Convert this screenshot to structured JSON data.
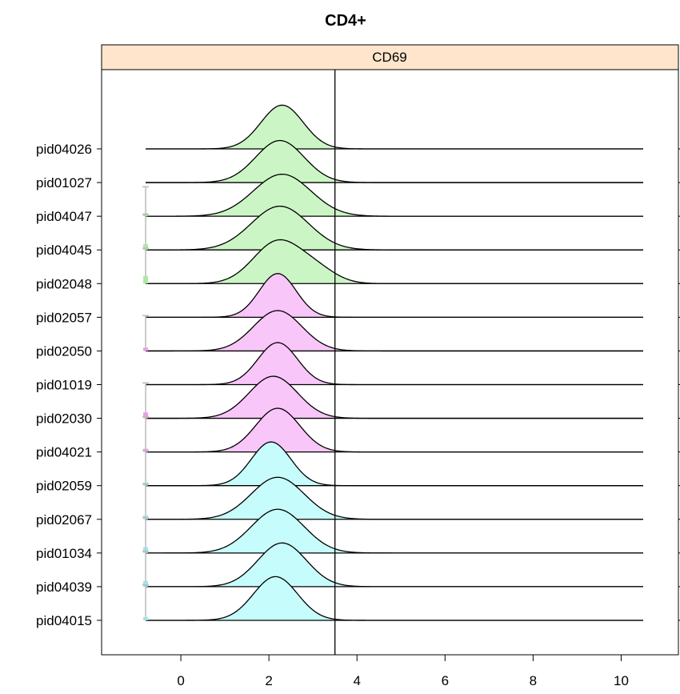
{
  "chart_data": {
    "type": "area",
    "title": "CD4+",
    "panel_label": "CD69",
    "xlim": [
      -1.8,
      11.3
    ],
    "x_ticks": [
      0,
      2,
      4,
      6,
      8,
      10
    ],
    "threshold_x": 3.5,
    "range_x": [
      -0.8,
      10.5
    ],
    "grid": false,
    "colors": {
      "green": "#ccf5c5",
      "pink": "#f9c6f9",
      "cyan": "#c7fcfc",
      "strip": "#ffe5cc",
      "whisker": "#bbbbbb",
      "box_green": "#aee8a3",
      "box_pink": "#ef9be9",
      "box_cyan": "#9fe3e8"
    },
    "series": [
      {
        "name": "pid04026",
        "group": "green",
        "peak": 2.3,
        "sd": 0.48,
        "height": 1.3,
        "box": null
      },
      {
        "name": "pid01027",
        "group": "green",
        "peak": 2.25,
        "sd": 0.55,
        "height": 1.25,
        "box": null
      },
      {
        "name": "pid04047",
        "group": "green",
        "peak": 2.3,
        "sd": 0.65,
        "height": 1.25,
        "box": [
          0.25,
          0.02
        ]
      },
      {
        "name": "pid04045",
        "group": "green",
        "peak": 2.25,
        "sd": 0.65,
        "height": 1.3,
        "box": [
          0.3,
          0.06
        ]
      },
      {
        "name": "pid02048",
        "group": "green",
        "peak": 2.2,
        "sd": 0.55,
        "height": 1.25,
        "box": [
          0.3,
          0.08
        ],
        "shoulder": [
          3.1,
          0.28,
          0.45
        ]
      },
      {
        "name": "pid02057",
        "group": "pink",
        "peak": 2.2,
        "sd": 0.42,
        "height": 1.3,
        "box": null
      },
      {
        "name": "pid02050",
        "group": "pink",
        "peak": 2.2,
        "sd": 0.55,
        "height": 1.2,
        "box": [
          0.3,
          0.02
        ]
      },
      {
        "name": "pid01019",
        "group": "pink",
        "peak": 2.2,
        "sd": 0.45,
        "height": 1.25,
        "box": null
      },
      {
        "name": "pid02030",
        "group": "pink",
        "peak": 2.1,
        "sd": 0.55,
        "height": 1.25,
        "box": [
          0.3,
          0.06
        ]
      },
      {
        "name": "pid04021",
        "group": "pink",
        "peak": 2.2,
        "sd": 0.5,
        "height": 1.3,
        "box": [
          0.3,
          0.02
        ]
      },
      {
        "name": "pid02059",
        "group": "cyan",
        "peak": 2.05,
        "sd": 0.45,
        "height": 1.3,
        "box": [
          0.3,
          0.02
        ]
      },
      {
        "name": "pid02067",
        "group": "cyan",
        "peak": 2.2,
        "sd": 0.6,
        "height": 1.25,
        "box": [
          0.3,
          0.04
        ]
      },
      {
        "name": "pid01034",
        "group": "cyan",
        "peak": 2.2,
        "sd": 0.6,
        "height": 1.3,
        "box": [
          0.3,
          0.06
        ]
      },
      {
        "name": "pid04039",
        "group": "cyan",
        "peak": 2.3,
        "sd": 0.55,
        "height": 1.3,
        "box": [
          0.3,
          0.06
        ]
      },
      {
        "name": "pid04015",
        "group": "cyan",
        "peak": 2.15,
        "sd": 0.5,
        "height": 1.3,
        "box": [
          0.3,
          0.02
        ]
      }
    ]
  }
}
